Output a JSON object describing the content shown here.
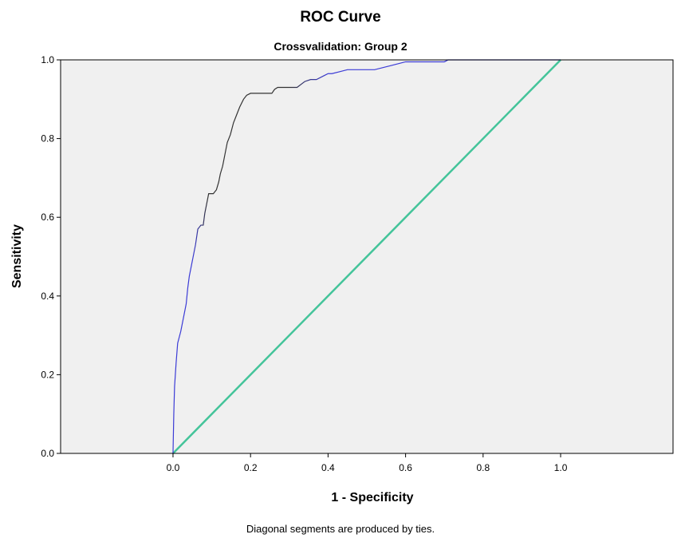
{
  "chart_data": {
    "type": "line",
    "title": "ROC Curve",
    "subtitle": "Crossvalidation: Group 2",
    "xlabel": "1 - Specificity",
    "ylabel": "Sensitivity",
    "footnote": "Diagonal segments are produced by ties.",
    "xlim": [
      -0.29,
      1.29
    ],
    "ylim": [
      0,
      1
    ],
    "x_ticks": [
      "0.0",
      "0.2",
      "0.4",
      "0.6",
      "0.8",
      "1.0"
    ],
    "y_ticks": [
      "0.0",
      "0.2",
      "0.4",
      "0.6",
      "0.8",
      "1.0"
    ],
    "grid": false,
    "colors": {
      "plot_background": "#f0f0f0",
      "curve_start": "#3b3bd6",
      "curve_mid": "#333333",
      "reference_line": "#44c49a"
    },
    "series": [
      {
        "x": [
          0.0,
          0.002,
          0.004,
          0.008,
          0.012,
          0.02,
          0.028,
          0.034,
          0.038,
          0.042,
          0.048,
          0.054,
          0.058,
          0.064,
          0.072,
          0.078,
          0.082,
          0.086,
          0.092,
          0.098,
          0.104,
          0.112,
          0.118,
          0.122,
          0.128,
          0.134,
          0.14,
          0.148,
          0.156,
          0.164,
          0.172,
          0.182,
          0.19,
          0.2,
          0.21,
          0.23,
          0.255,
          0.262,
          0.27,
          0.29,
          0.32,
          0.34,
          0.355,
          0.37,
          0.39,
          0.4,
          0.41,
          0.43,
          0.45,
          0.5,
          0.52,
          0.56,
          0.58,
          0.6,
          0.64,
          0.7,
          0.71,
          1.0
        ],
        "y": [
          0.0,
          0.1,
          0.17,
          0.23,
          0.28,
          0.31,
          0.35,
          0.38,
          0.42,
          0.45,
          0.48,
          0.51,
          0.53,
          0.57,
          0.58,
          0.58,
          0.61,
          0.63,
          0.66,
          0.66,
          0.66,
          0.67,
          0.69,
          0.71,
          0.73,
          0.76,
          0.79,
          0.81,
          0.84,
          0.86,
          0.88,
          0.9,
          0.91,
          0.915,
          0.915,
          0.915,
          0.915,
          0.925,
          0.93,
          0.93,
          0.93,
          0.945,
          0.95,
          0.95,
          0.96,
          0.965,
          0.965,
          0.97,
          0.975,
          0.975,
          0.975,
          0.985,
          0.99,
          0.995,
          0.995,
          0.995,
          1.0,
          1.0
        ]
      },
      {
        "x": [
          0,
          1
        ],
        "y": [
          0,
          1
        ]
      }
    ]
  }
}
